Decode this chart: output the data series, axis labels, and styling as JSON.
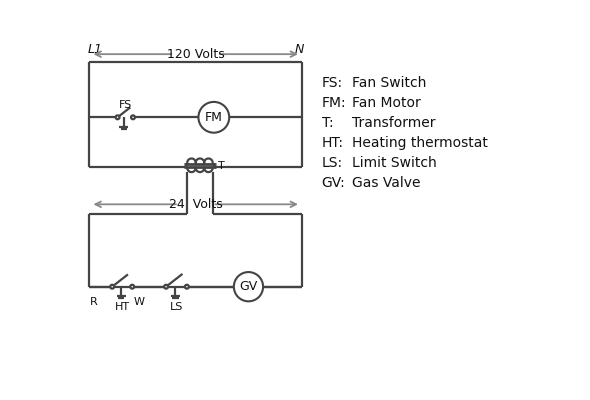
{
  "bg_color": "#ffffff",
  "line_color": "#444444",
  "text_color": "#111111",
  "legend": {
    "FS": "Fan Switch",
    "FM": "Fan Motor",
    "T": "Transformer",
    "HT": "Heating thermostat",
    "LS": "Limit Switch",
    "GV": "Gas Valve"
  },
  "L1_label": "L1",
  "N_label": "N",
  "volts120_label": "120 Volts",
  "volts24_label": "24  Volts",
  "FS_label": "FS",
  "FM_label": "FM",
  "T_label": "T",
  "R_label": "R",
  "W_label": "W",
  "HT_label": "HT",
  "LS_label": "LS",
  "GV_label": "GV",
  "arrow_color": "#888888"
}
